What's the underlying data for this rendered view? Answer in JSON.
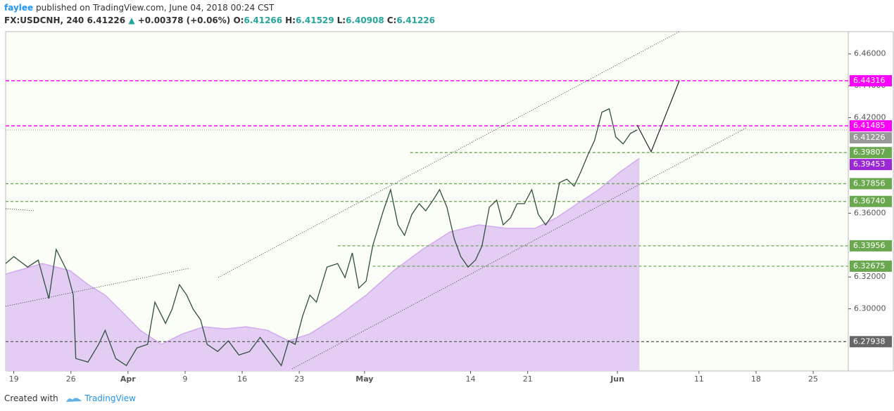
{
  "header": {
    "author": "faylee",
    "published": "published on TradingView.com, June 04, 2018 00:24 CST",
    "symbol": "FX:USDCNH, 240",
    "last": "6.41226",
    "change": "+0.00378 (+0.06%)",
    "ohlc": [
      {
        "label": "O:",
        "value": "6.41266"
      },
      {
        "label": "H:",
        "value": "6.41529"
      },
      {
        "label": "L:",
        "value": "6.40908"
      },
      {
        "label": "C:",
        "value": "6.41226"
      }
    ]
  },
  "footer": {
    "created": "Created with",
    "brand": "TradingView"
  },
  "chart_data": {
    "type": "line",
    "color": "#2f4f3f",
    "x": [
      -1.0,
      0,
      1.7,
      3.0,
      4.3,
      5.2,
      6.5,
      7.3,
      7.6,
      9.1,
      10.4,
      11.2,
      12.5,
      13.8,
      15.1,
      16.4,
      17.3,
      18.6,
      19.4,
      20.3,
      21.2,
      22.0,
      22.9,
      23.7,
      25.0,
      26.3,
      27.6,
      28.9,
      30.2,
      31.5,
      32.8,
      33.7,
      34.5,
      35.4,
      36.3,
      37.1,
      38.4,
      39.7,
      40.6,
      41.5,
      42.3,
      43.2,
      44.0,
      45.3,
      46.2,
      47.1,
      47.9,
      48.8,
      49.7,
      50.5,
      51.4,
      52.2,
      53.1,
      54.0,
      54.8,
      55.7,
      56.6,
      57.4,
      58.3,
      59.2,
      60.0,
      60.9,
      61.7,
      62.6,
      63.5,
      64.3,
      65.2,
      66.1,
      66.9,
      67.8,
      68.7,
      69.5,
      70.4,
      71.2,
      72.1,
      73.0,
      73.8,
      74.7,
      75.6,
      76.4
    ],
    "values": [
      6.3284,
      6.3328,
      6.3262,
      6.3306,
      6.3064,
      6.3373,
      6.324,
      6.3086,
      6.2688,
      6.2666,
      6.2777,
      6.2865,
      6.2688,
      6.2644,
      6.2755,
      6.2777,
      6.3042,
      6.2909,
      6.2997,
      6.3152,
      6.3086,
      6.2997,
      6.2931,
      6.2777,
      6.2732,
      6.2799,
      6.271,
      6.2732,
      6.2821,
      6.2732,
      6.2644,
      6.2799,
      6.2777,
      6.2953,
      6.3086,
      6.3042,
      6.3262,
      6.3284,
      6.3196,
      6.3351,
      6.313,
      6.3174,
      6.3395,
      6.3615,
      6.3748,
      6.3527,
      6.3461,
      6.3593,
      6.366,
      6.3615,
      6.3682,
      6.3748,
      6.3638,
      6.3439,
      6.3328,
      6.3262,
      6.3306,
      6.3395,
      6.3638,
      6.3682,
      6.3527,
      6.3571,
      6.366,
      6.366,
      6.3748,
      6.3593,
      6.3527,
      6.3593,
      6.3792,
      6.3814,
      6.377,
      6.3858,
      6.3969,
      6.4057,
      6.4234,
      6.4256,
      6.4079,
      6.4035,
      6.4101,
      6.41226
    ],
    "ma": {
      "color": "#e3cdf3",
      "x": [
        -1.0,
        3.5,
        6.9,
        9.1,
        11.2,
        13.4,
        15.5,
        18.1,
        20.7,
        23.3,
        25.9,
        28.5,
        31.1,
        33.7,
        36.3,
        39.7,
        43.2,
        46.6,
        50.1,
        53.5,
        57.0,
        60.4,
        63.9,
        66.5,
        69.1,
        71.7,
        74.3,
        76.7
      ],
      "values": [
        6.3218,
        6.3284,
        6.324,
        6.3152,
        6.3086,
        6.2975,
        6.2865,
        6.2777,
        6.2843,
        6.2887,
        6.2874,
        6.2887,
        6.2865,
        6.2799,
        6.2843,
        6.2953,
        6.3086,
        6.324,
        6.3373,
        6.3483,
        6.3527,
        6.3505,
        6.3505,
        6.3571,
        6.366,
        6.3748,
        6.3858,
        6.39453
      ]
    },
    "xlim": [
      -1.0,
      102.3
    ],
    "ylim": [
      6.261,
      6.474
    ],
    "xticks": [
      {
        "value": 0,
        "label": "19"
      },
      {
        "value": 7,
        "label": "26"
      },
      {
        "value": 14,
        "label": "Apr"
      },
      {
        "value": 21,
        "label": "9"
      },
      {
        "value": 28,
        "label": "16"
      },
      {
        "value": 35,
        "label": "23"
      },
      {
        "value": 43,
        "label": "May"
      },
      {
        "value": 56,
        "label": "14"
      },
      {
        "value": 63,
        "label": "21"
      },
      {
        "value": 74,
        "label": "Jun"
      },
      {
        "value": 84,
        "label": "11"
      },
      {
        "value": 91,
        "label": "18"
      },
      {
        "value": 98,
        "label": "25"
      }
    ],
    "yticks": [
      {
        "value": 6.3,
        "label": "6.30000"
      },
      {
        "value": 6.32,
        "label": "6.32000"
      },
      {
        "value": 6.36,
        "label": "6.36000"
      },
      {
        "value": 6.42,
        "label": "6.42000"
      },
      {
        "value": 6.44,
        "label": "6.44000"
      },
      {
        "value": 6.46,
        "label": "6.46000"
      }
    ],
    "levels": [
      {
        "value": 6.44316,
        "label": "6.44316",
        "color": "#ff00ff",
        "from": null
      },
      {
        "value": 6.41485,
        "label": "6.41485",
        "color": "#ff00ff",
        "from": null
      },
      {
        "value": 6.39807,
        "label": "6.39807",
        "color": "#6aa84f",
        "from": 48.6
      },
      {
        "value": 6.37856,
        "label": "6.37856",
        "color": "#6aa84f",
        "from": null
      },
      {
        "value": 6.3674,
        "label": "6.36740",
        "color": "#6aa84f",
        "from": null
      },
      {
        "value": 6.33956,
        "label": "6.33956",
        "color": "#6aa84f",
        "from": 39.7
      },
      {
        "value": 6.32675,
        "label": "6.32675",
        "color": "#6aa84f",
        "from": 44.0
      },
      {
        "value": 6.27938,
        "label": "6.27938",
        "color": "#666666",
        "from": null
      }
    ],
    "last": {
      "value": 6.41226,
      "label": "6.41226",
      "color": "#999999"
    },
    "ma_last": {
      "value": 6.39453,
      "label": "6.39453",
      "color": "#9c27d6"
    }
  }
}
